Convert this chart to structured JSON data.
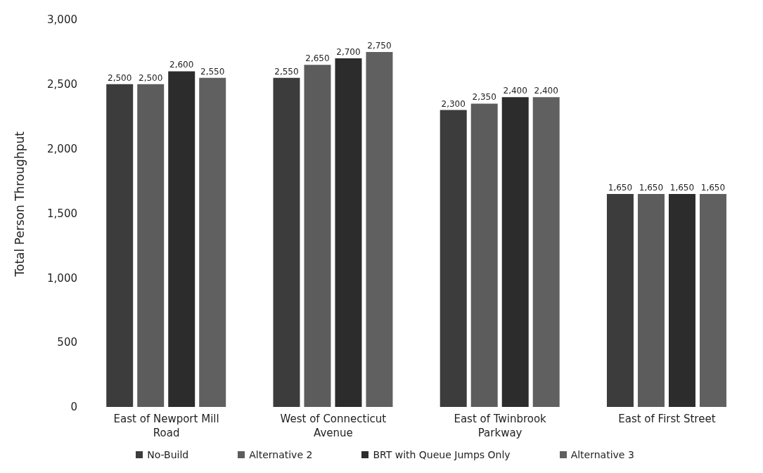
{
  "chart_data": {
    "type": "bar",
    "ylabel": "Total Person Throughput",
    "categories": [
      "East of Newport Mill Road",
      "West of Connecticut Avenue",
      "East of Twinbrook Parkway",
      "East of First Street"
    ],
    "series": [
      {
        "name": "No-Build",
        "color": "#3c3c3c",
        "values": [
          2500,
          2550,
          2300,
          1650
        ],
        "value_labels": [
          "2,500",
          "2,550",
          "2,300",
          "1,650"
        ]
      },
      {
        "name": "Alternative 2",
        "color": "#5c5c5c",
        "values": [
          2500,
          2650,
          2350,
          1650
        ],
        "value_labels": [
          "2,500",
          "2,650",
          "2,350",
          "1,650"
        ]
      },
      {
        "name": "BRT with Queue Jumps Only",
        "color": "#2c2c2c",
        "values": [
          2600,
          2700,
          2400,
          1650
        ],
        "value_labels": [
          "2,600",
          "2,700",
          "2,400",
          "1,650"
        ]
      },
      {
        "name": "Alternative 3",
        "color": "#606060",
        "values": [
          2550,
          2750,
          2400,
          1650
        ],
        "value_labels": [
          "2,550",
          "2,750",
          "2,400",
          "1,650"
        ]
      }
    ],
    "ylim": [
      0,
      3000
    ],
    "yticks": [
      0,
      500,
      {
        "value": 1000,
        "label": "1,000"
      },
      {
        "value": 1500,
        "label": "1,500"
      },
      {
        "value": 2000,
        "label": "2,000"
      },
      {
        "value": 2500,
        "label": "2,500"
      },
      {
        "value": 3000,
        "label": "3,000"
      }
    ],
    "grid": false,
    "legend": "bottom"
  }
}
